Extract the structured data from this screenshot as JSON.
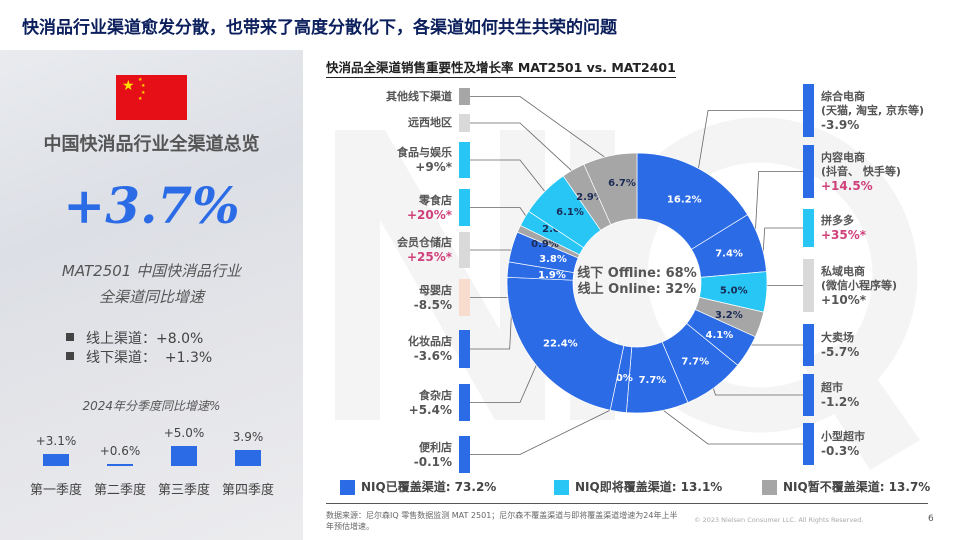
{
  "title": "快消品行业渠道愈发分散，也带来了高度分散化下，各渠道如何共生共荣的问题",
  "left_panel": {
    "heading": "中国快消品行业全渠道总览",
    "growth": "+3.7%",
    "growth_caption_1": "MAT2501 中国快消品行业",
    "growth_caption_2": "全渠道同比增速",
    "bullets": [
      {
        "label": "线上渠道：",
        "value": "+8.0%"
      },
      {
        "label": "线下渠道：",
        "value": "+1.3%"
      }
    ],
    "quarter_title": "2024年分季度同比增速%"
  },
  "chart_data": [
    {
      "type": "pie",
      "title": "快消品全渠道销售重要性及增长率 MAT2501 vs. MAT2401",
      "center_text_1": "线下 Offline: 68%",
      "center_text_2": "线上 Online: 32%",
      "colors": {
        "covered": "#2b6be6",
        "upcoming": "#27c6f5",
        "not_covered": "#a6a6a6",
        "not_covered_light": "#d9d9d9",
        "baby": "#f8dccd",
        "pink": "#d0407a"
      },
      "slices": [
        {
          "name": "综合电商",
          "sub": "(天猫, 淘宝, 京东等)",
          "growth": "-3.9%",
          "share": 16.2,
          "label": "16.2%",
          "cov": "covered",
          "side": "right"
        },
        {
          "name": "内容电商",
          "sub": "(抖音、 快手等)",
          "growth": "+14.5%",
          "share": 7.4,
          "label": "7.4%",
          "cov": "covered",
          "side": "right",
          "highlight": true
        },
        {
          "name": "拼多多",
          "growth": "+35%*",
          "share": 5.0,
          "label": "5.0%",
          "cov": "upcoming",
          "side": "right",
          "highlight": true
        },
        {
          "name": "私域电商",
          "sub": "(微信小程序等)",
          "growth": "+10%*",
          "share": 3.2,
          "label": "3.2%",
          "cov": "not_covered",
          "side": "right"
        },
        {
          "name": "大卖场",
          "growth": "-5.7%",
          "share": 4.1,
          "label": "4.1%",
          "cov": "covered",
          "side": "right"
        },
        {
          "name": "超市",
          "growth": "-1.2%",
          "share": 7.7,
          "label": "7.7%",
          "cov": "covered",
          "side": "right"
        },
        {
          "name": "小型超市",
          "growth": "-0.3%",
          "share": 7.7,
          "label": "7.7%",
          "cov": "covered",
          "side": "right"
        },
        {
          "name": "便利店",
          "growth": "-0.1%",
          "share": 2.0,
          "label": "2.0%",
          "cov": "covered",
          "side": "left"
        },
        {
          "name": "食杂店",
          "growth": "+5.4%",
          "share": 22.4,
          "label": "22.4%",
          "cov": "covered",
          "side": "left"
        },
        {
          "name": "化妆品店",
          "growth": "-3.6%",
          "share": 1.9,
          "label": "1.9%",
          "cov": "covered",
          "side": "left"
        },
        {
          "name": "母婴店",
          "growth": "-8.5%",
          "share": 3.8,
          "label": "3.8%",
          "cov": "covered",
          "side": "left"
        },
        {
          "name": "会员仓储店",
          "growth": "+25%*",
          "share": 0.9,
          "label": "0.9%",
          "cov": "not_covered",
          "side": "left",
          "highlight": true
        },
        {
          "name": "零食店",
          "growth": "+20%*",
          "share": 2.0,
          "label": "2.0%",
          "cov": "upcoming",
          "side": "left",
          "highlight": true
        },
        {
          "name": "食品与娱乐",
          "growth": "+9%*",
          "share": 6.1,
          "label": "6.1%",
          "cov": "upcoming",
          "side": "left"
        },
        {
          "name": "远西地区",
          "share": 2.9,
          "label": "2.9%",
          "cov": "not_covered",
          "side": "left"
        },
        {
          "name": "其他线下渠道",
          "share": 6.7,
          "label": "6.7%",
          "cov": "not_covered",
          "side": "left"
        }
      ],
      "legend": [
        {
          "label": "NIQ已覆盖渠道: 73.2%",
          "color": "#2b6be6"
        },
        {
          "label": "NIQ即将覆盖渠道: 13.1%",
          "color": "#27c6f5"
        },
        {
          "label": "NIQ暂不覆盖渠道: 13.7%",
          "color": "#a6a6a6"
        }
      ]
    },
    {
      "type": "bar",
      "title": "2024年分季度同比增速%",
      "categories": [
        "第一季度",
        "第二季度",
        "第三季度",
        "第四季度"
      ],
      "values": [
        3.1,
        0.6,
        5.0,
        3.9
      ],
      "labels": [
        "+3.1%",
        "+0.6%",
        "+5.0%",
        "3.9%"
      ]
    }
  ],
  "footer": {
    "source": "数据来源：尼尔森IQ 零售数据监测 MAT 2501；尼尔森不覆盖渠道与即将覆盖渠道增速为24年上半年预估增速。",
    "copyright": "© 2023 Nielsen Consumer LLC. All Rights Reserved.",
    "page": "6"
  }
}
